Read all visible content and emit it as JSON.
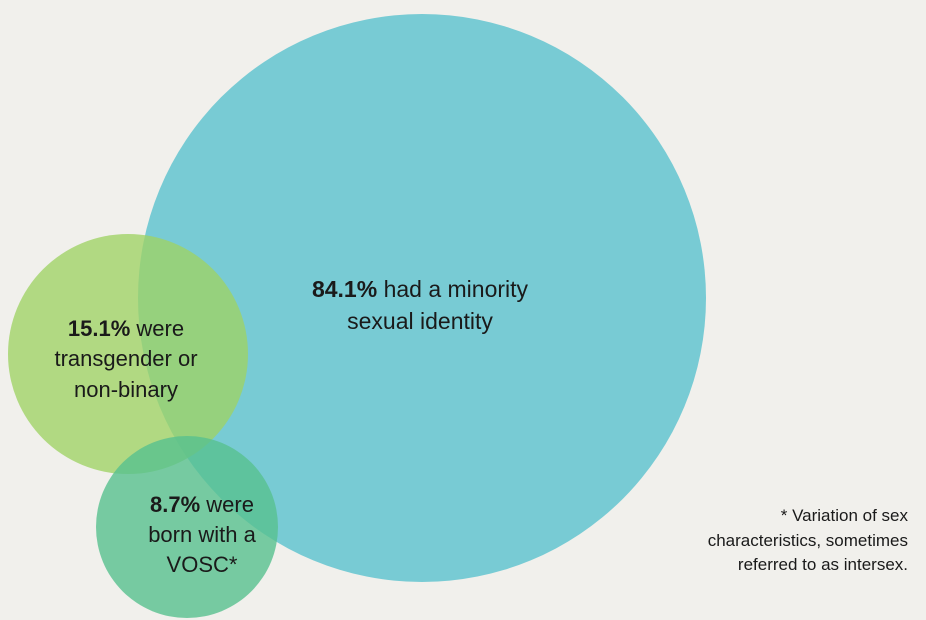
{
  "colors": {
    "background": "#f1f0ec",
    "minority_sexual_identity": "#74c9d3",
    "transgender_nonbinary": "#9fd264",
    "vosc": "#58c08e",
    "text": "#1a1a1a"
  },
  "chart_data": {
    "type": "proportional-venn",
    "title": "",
    "series": [
      {
        "key": "minority",
        "value": 84.1,
        "unit": "%",
        "percent_label": "84.1%",
        "text_line1": "had a minority",
        "text_line2": "sexual identity",
        "color": "#74c9d3"
      },
      {
        "key": "trans",
        "value": 15.1,
        "unit": "%",
        "percent_label": "15.1%",
        "text_line1": "were",
        "text_line2": "transgender or",
        "text_line3": "non-binary",
        "color": "#9fd264"
      },
      {
        "key": "vosc",
        "value": 8.7,
        "unit": "%",
        "percent_label": "8.7%",
        "text_line1": "were",
        "text_line2": "born with a",
        "text_line3": "VOSC*",
        "color": "#58c08e"
      }
    ]
  },
  "footnote": {
    "line1": "* Variation of sex",
    "line2": "characteristics, sometimes",
    "line3": "referred to as intersex."
  }
}
